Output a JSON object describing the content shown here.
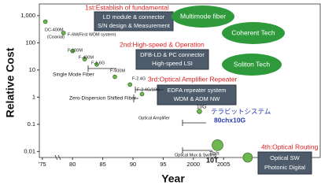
{
  "chart_data": {
    "type": "scatter",
    "y_label": "Relative Cost",
    "x_label": "Year",
    "x": [
      1975.5,
      1978.5,
      1980,
      1982,
      1984,
      1987,
      1989.5,
      1991.5,
      2001,
      2004,
      2009
    ],
    "series": [
      {
        "color": "#6cb84e",
        "values": [
          600,
          230,
          50,
          25,
          16,
          5.6,
          2.9,
          1.3,
          0.3,
          0.017,
          0.006
        ]
      }
    ],
    "point_labels": [
      "DC-400M",
      "F-6M(First WDM system)",
      "F-100M",
      "F-400M",
      "F-1.6G",
      "F-600M",
      "F-2.4G",
      "F-2.4G/10G",
      "10G",
      "Tb/s",
      "10T"
    ],
    "log_y": true,
    "ylim": [
      0.006,
      2700
    ],
    "yticks": [
      {
        "value": 1000,
        "label": "1,000"
      },
      100,
      10,
      1,
      0.1,
      0.01
    ],
    "xlim": [
      1974.5,
      2021
    ],
    "xticks": [
      {
        "value": 1975,
        "label": "'75"
      },
      {
        "value": 1980,
        "label": "80"
      },
      {
        "value": 1985,
        "label": "85"
      },
      {
        "value": 1990,
        "label": "90"
      },
      {
        "value": 1995,
        "label": "95"
      },
      2000,
      2005
    ],
    "annotations": [
      "1st:Establish of fundamental",
      "LD module & connector",
      "S/N design & Measurement",
      "Multimode fiber",
      "2nd:High-speed & Operation",
      "DFB-LD & PC connector",
      "High-speed LSI",
      "Coherent Tech",
      "Soliton Tech",
      "3rd:Optical Amplifier Repeater",
      "EDFA repeater system",
      "WDM & ADM NW",
      "テラビットシステム",
      "80chx10G",
      "4th:Optical Routing",
      "Optical SW",
      "Photonic Digital",
      "Single Mode Fiber",
      "Zero-Dispersion Shifted Fiber",
      "Optical Amplifier",
      "Optical Mux & Switing",
      "(Coaxial)"
    ]
  }
}
